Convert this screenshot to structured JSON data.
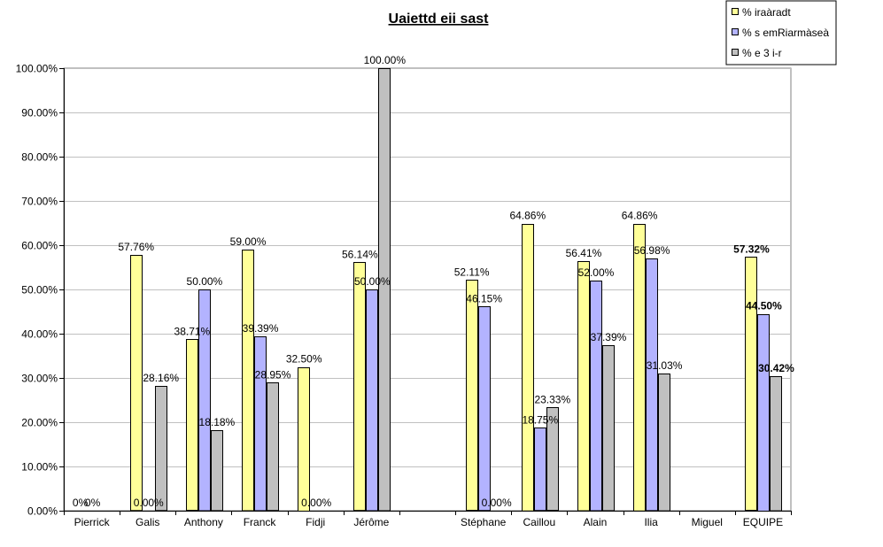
{
  "chart_data": {
    "type": "bar",
    "title": "Uaiettd eii sast",
    "xlabel": "",
    "ylabel": "",
    "ylim": [
      0,
      100
    ],
    "yticks": [
      "0.00%",
      "10.00%",
      "20.00%",
      "30.00%",
      "40.00%",
      "50.00%",
      "60.00%",
      "70.00%",
      "80.00%",
      "90.00%",
      "100.00%"
    ],
    "grid": true,
    "legend_position": "top-right",
    "categories": [
      "Pierrick",
      "Galis",
      "Anthony",
      "Franck",
      "Fidji",
      "Jérôme",
      "",
      "Stéphane",
      "Caillou",
      "Alain",
      "Ilia",
      "Miguel",
      "EQUIPE"
    ],
    "series": [
      {
        "name": "%  iraàradt",
        "color": "#ffff99",
        "values": [
          0,
          57.76,
          38.71,
          59.0,
          32.5,
          56.14,
          null,
          52.11,
          64.86,
          56.41,
          64.86,
          null,
          57.32
        ],
        "labels": [
          "0%",
          "57.76%",
          "38.71%",
          "59.00%",
          "32.50%",
          "56.14%",
          "",
          "52.11%",
          "64.86%",
          "56.41%",
          "64.86%",
          "",
          "57.32%"
        ]
      },
      {
        "name": "% s  emRiarmàseà",
        "color": "#b3b3ff",
        "values": [
          0,
          0,
          50.0,
          39.39,
          0,
          50.0,
          null,
          46.15,
          18.75,
          52.0,
          56.98,
          null,
          44.5
        ],
        "labels": [
          "0%",
          "0.00%",
          "50.00%",
          "39.39%",
          "0.00%",
          "50.00%",
          "",
          "46.15%",
          "18.75%",
          "52.00%",
          "56.98%",
          "",
          "44.50%"
        ]
      },
      {
        "name": "% e  3 i-r",
        "color": "#c0c0c0",
        "values": [
          null,
          28.16,
          18.18,
          28.95,
          null,
          100.0,
          null,
          0,
          23.33,
          37.39,
          31.03,
          null,
          30.42
        ],
        "labels": [
          "",
          "28.16%",
          "18.18%",
          "28.95%",
          "",
          "100.00%",
          "",
          "0.00%",
          "23.33%",
          "37.39%",
          "31.03%",
          "",
          "30.42%"
        ]
      }
    ]
  }
}
